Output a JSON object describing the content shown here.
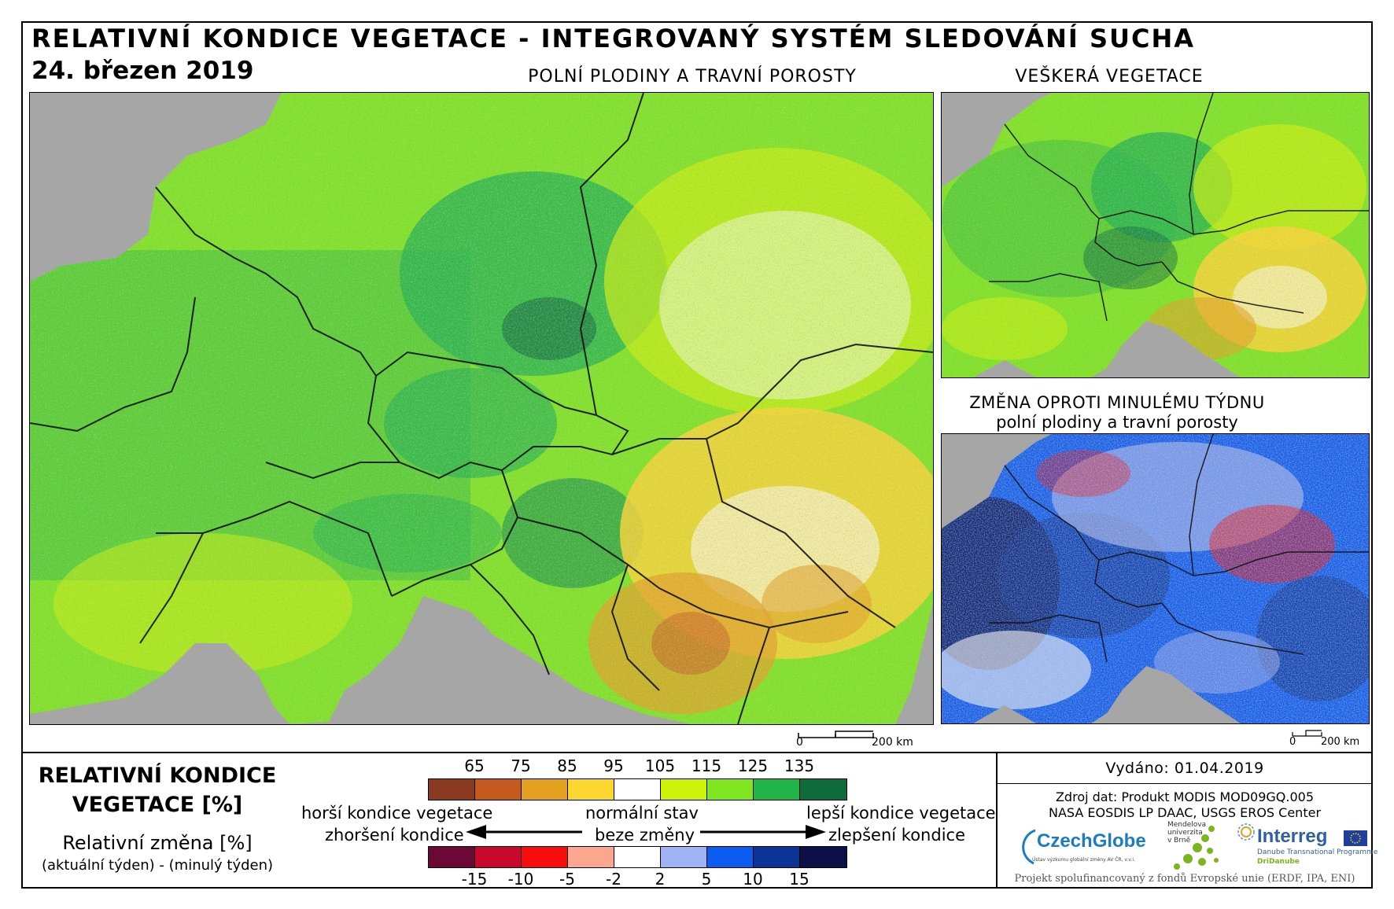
{
  "header": {
    "title": "RELATIVNÍ KONDICE VEGETACE - INTEGROVANÝ SYSTÉM SLEDOVÁNÍ SUCHA",
    "date": "24. březen 2019"
  },
  "maps": {
    "main_caption": "POLNÍ PLODINY A TRAVNÍ POROSTY",
    "veg_caption": "VEŠKERÁ VEGETACE",
    "change_caption_line1": "ZMĚNA OPROTI MINULÉMU TÝDNU",
    "change_caption_line2": "polní plodiny a travní porosty",
    "scale_zero": "0",
    "scale_label": "200 km"
  },
  "legend": {
    "title_line1": "RELATIVNÍ KONDICE",
    "title_line2": "VEGETACE [%]",
    "change_title": "Relativní změna [%]",
    "change_subtitle": "(aktuální týden) - (minulý týden)",
    "worse_condition": "horší kondice vegetace",
    "normal_state": "normální stav",
    "better_condition": "lepší kondice vegetace",
    "worsening": "zhoršení kondice",
    "no_change": "beze změny",
    "improvement": "zlepšení kondice",
    "condition_ticks": [
      "65",
      "75",
      "85",
      "95",
      "105",
      "115",
      "125",
      "135"
    ],
    "condition_colors": [
      "#8b3a22",
      "#c45a1f",
      "#e4a11f",
      "#fbd62f",
      "#ffffff",
      "#ccf207",
      "#7ee51f",
      "#23b44a",
      "#0e6b3c"
    ],
    "change_ticks": [
      "-15",
      "-10",
      "-5",
      "-2",
      "2",
      "5",
      "10",
      "15"
    ],
    "change_colors": [
      "#6b0836",
      "#c9082e",
      "#f70d0d",
      "#fba78f",
      "#ffffff",
      "#9fb2f3",
      "#0d5cf2",
      "#0c3494",
      "#0b1148"
    ]
  },
  "info": {
    "issued": "Vydáno: 01.04.2019",
    "source_line1": "Zdroj dat: Produkt MODIS MOD09GQ.005",
    "source_line2": "NASA EOSDIS LP DAAC, USGS EROS Center",
    "logo_czechglobe": "CzechGlobe",
    "logo_czechglobe_sub": "Ústav výzkumu globální změny AV ČR, v.v.i.",
    "logo_mendel_line1": "Mendelova",
    "logo_mendel_line2": "univerzita",
    "logo_mendel_line3": "v Brně",
    "logo_interreg": "Interreg",
    "logo_interreg_sub": "Danube Transnational Programme",
    "logo_interreg_proj": "DriDanube",
    "footer": "Projekt spolufinancovaný z fondů Evropské unie (ERDF, IPA, ENI)"
  }
}
